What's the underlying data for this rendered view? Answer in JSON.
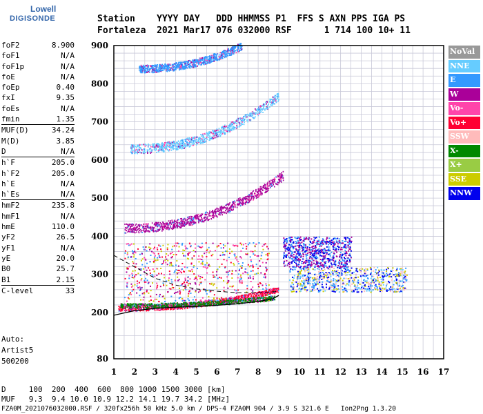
{
  "logo": {
    "line1": "Lowell",
    "line2": "DIGISONDE"
  },
  "header": {
    "line1": "Station    YYYY DAY   DDD HHMMSS P1  FFS S AXN PPS IGA PS",
    "line2": "Fortaleza  2021 Mar17 076 032000 RSF      1 714 100 10+ 11"
  },
  "params": [
    {
      "k": "foF2",
      "v": "8.900"
    },
    {
      "k": "foF1",
      "v": "N/A"
    },
    {
      "k": "foF1p",
      "v": "N/A"
    },
    {
      "k": "foE",
      "v": "N/A"
    },
    {
      "k": "foEp",
      "v": "0.40"
    },
    {
      "k": "fxI",
      "v": "9.35"
    },
    {
      "k": "foEs",
      "v": "N/A"
    },
    {
      "k": "fmin",
      "v": "1.35"
    },
    {
      "k": "MUF(D)",
      "v": "34.24",
      "sep": true
    },
    {
      "k": "M(D)",
      "v": "3.85"
    },
    {
      "k": "D",
      "v": "N/A"
    },
    {
      "k": "h`F",
      "v": "205.0",
      "sep": true
    },
    {
      "k": "h`F2",
      "v": "205.0"
    },
    {
      "k": "h`E",
      "v": "N/A"
    },
    {
      "k": "h`Es",
      "v": "N/A"
    },
    {
      "k": "hmF2",
      "v": "235.8",
      "sep": true
    },
    {
      "k": "hmF1",
      "v": "N/A"
    },
    {
      "k": "hmE",
      "v": "110.0"
    },
    {
      "k": "yF2",
      "v": "26.5"
    },
    {
      "k": "yF1",
      "v": "N/A"
    },
    {
      "k": "yE",
      "v": "20.0"
    },
    {
      "k": "B0",
      "v": "25.7"
    },
    {
      "k": "B1",
      "v": "2.15"
    },
    {
      "k": "C-level",
      "v": "33",
      "sep": true
    }
  ],
  "auto": {
    "l1": "Auto:",
    "l2": "Artist5",
    "l3": "500200"
  },
  "legend": [
    {
      "label": "NoVal",
      "color": "#999999"
    },
    {
      "label": "NNE",
      "color": "#66ccff"
    },
    {
      "label": "E",
      "color": "#3399ff"
    },
    {
      "label": "W",
      "color": "#aa0099"
    },
    {
      "label": "Vo-",
      "color": "#ff44aa"
    },
    {
      "label": "Vo+",
      "color": "#ff0033"
    },
    {
      "label": "SSW",
      "color": "#ffbbbb"
    },
    {
      "label": "X-",
      "color": "#008800"
    },
    {
      "label": "X+",
      "color": "#99cc44"
    },
    {
      "label": "SSE",
      "color": "#cccc00"
    },
    {
      "label": "NNW",
      "color": "#0000ee"
    }
  ],
  "footer": {
    "line1": "D     100  200  400  600  800 1000 1500 3000 [km]",
    "line2": "MUF   9.3  9.4 10.0 10.9 12.2 14.1 19.7 34.2 [MHz]",
    "line3": "FZA0M_2021076032000.RSF / 320fx256h 50 kHz 5.0 km / DPS-4 FZA0M 904 / 3.9 S 321.6 E   Ion2Png 1.3.20"
  },
  "chart_data": {
    "type": "scatter",
    "xlim": [
      1,
      17
    ],
    "ylim": [
      80,
      900
    ],
    "x_ticks": [
      1,
      2,
      3,
      4,
      5,
      6,
      7,
      8,
      9,
      10,
      11,
      12,
      13,
      14,
      15,
      16,
      17
    ],
    "y_ticks": [
      80,
      200,
      300,
      400,
      500,
      600,
      700,
      800,
      900
    ],
    "grid": true,
    "profile_curve": {
      "x": [
        1.0,
        2.0,
        3.0,
        4.0,
        5.0,
        6.0,
        7.0,
        8.0,
        8.7,
        9.0
      ],
      "y": [
        193,
        205,
        211,
        214,
        216,
        219,
        223,
        229,
        236,
        245
      ]
    },
    "dashed_curve": {
      "x": [
        1.0,
        2.0,
        3.0,
        4.0,
        5.0,
        6.0,
        7.0,
        8.0,
        8.9
      ],
      "y": [
        350,
        320,
        290,
        272,
        262,
        256,
        252,
        252,
        255
      ]
    },
    "traces": [
      {
        "name": "F2 1st hop (o)",
        "x0": 1.2,
        "y0": 212,
        "x1": 9.0,
        "y1": 262,
        "spread": 7,
        "color": "#ff0033"
      },
      {
        "name": "F2 1st hop (x)",
        "x0": 1.3,
        "y0": 219,
        "x1": 8.8,
        "y1": 240,
        "spread": 6,
        "color": "#008800"
      },
      {
        "name": "F2 2nd hop",
        "x0": 1.5,
        "y0": 422,
        "x1": 9.2,
        "y1": 560,
        "spread": 12,
        "color": "#aa0099"
      },
      {
        "name": "F2 3rd hop",
        "x0": 1.8,
        "y0": 630,
        "x1": 9.0,
        "y1": 770,
        "spread": 12,
        "color": "#66ccff"
      },
      {
        "name": "F2 4th hop",
        "x0": 2.2,
        "y0": 840,
        "x1": 7.2,
        "y1": 900,
        "spread": 10,
        "color": "#3399ff"
      }
    ],
    "spread_clusters": [
      {
        "x0": 9.5,
        "x1": 15.2,
        "y0": 255,
        "y1": 320,
        "colors": [
          "#0000ee",
          "#3399ff",
          "#66ccff",
          "#cccc00",
          "#ffbbbb"
        ]
      },
      {
        "x0": 1.5,
        "x1": 8.5,
        "y0": 230,
        "y1": 385,
        "colors": [
          "#aa0099",
          "#ff44aa",
          "#ff0033",
          "#3399ff",
          "#cccc00"
        ]
      },
      {
        "x0": 9.2,
        "x1": 12.5,
        "y0": 320,
        "y1": 400,
        "colors": [
          "#0000ee",
          "#3399ff",
          "#aa0099"
        ]
      }
    ]
  }
}
